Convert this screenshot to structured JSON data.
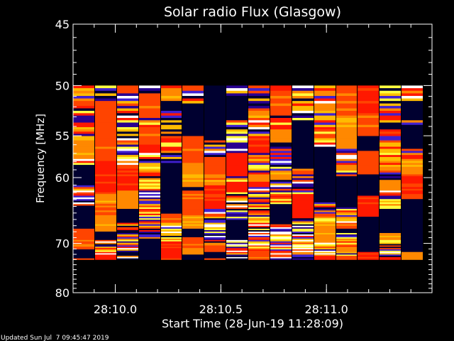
{
  "chart_data": {
    "type": "heatmap",
    "title": "Solar radio Flux (Glasgow)",
    "ylabel": "Frequency [MHz]",
    "xlabel": "Start Time (28-Jun-19 11:28:09)",
    "ylim": [
      45,
      80
    ],
    "y_scale": "reciprocal",
    "y_ticks": [
      45,
      50,
      55,
      60,
      70,
      80
    ],
    "xlim_seconds": [
      9.8,
      11.5
    ],
    "x_ticks": [
      {
        "value": 10.0,
        "label": "28:10.0"
      },
      {
        "value": 10.5,
        "label": "28:10.5"
      },
      {
        "value": 11.0,
        "label": "28:11.0"
      }
    ],
    "x_minor_step": 0.1,
    "data_freq_range_mhz": [
      50,
      73
    ],
    "data_time_range_seconds": [
      9.8,
      11.46
    ],
    "columns": 16,
    "rows": 96,
    "colormap": [
      "#000030",
      "#280090",
      "#4020d0",
      "#ff1800",
      "#ff4400",
      "#ff8800",
      "#ffbb00",
      "#ffff40",
      "#ffffff"
    ],
    "grid": false
  },
  "footer": {
    "updated": "Updated Sun Jul  7 09:45:47 2019"
  }
}
